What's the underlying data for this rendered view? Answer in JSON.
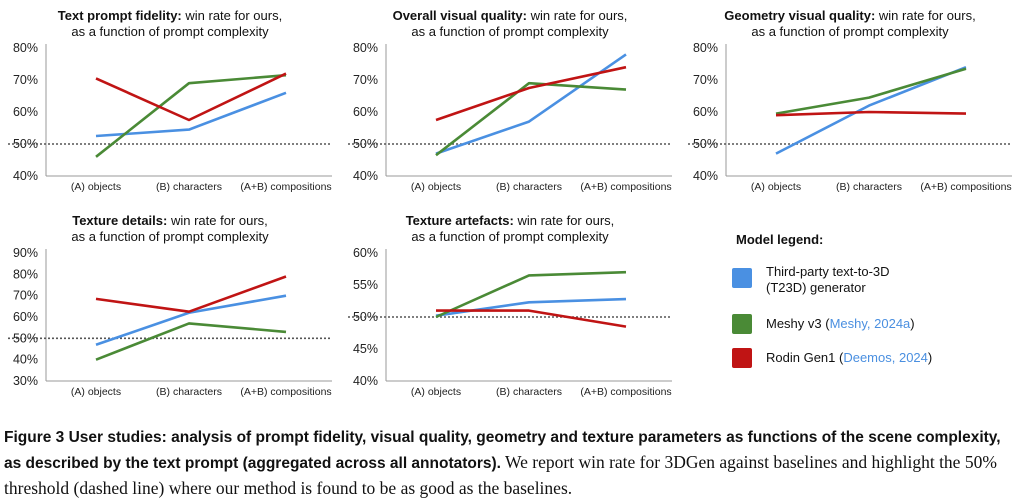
{
  "colors": {
    "t23d": "#4a90e2",
    "meshy": "#4a8a36",
    "rodin": "#c01414",
    "threshold": "#555555",
    "axis": "#999999"
  },
  "chart_data": [
    {
      "type": "line",
      "title_bold": "Text prompt fidelity:",
      "title_rest": " win rate for ours,",
      "title_line2": "as a function of prompt complexity",
      "categories": [
        "(A) objects",
        "(B) characters",
        "(A+B) compositions"
      ],
      "ylim": [
        40,
        80
      ],
      "yticks": [
        40,
        50,
        60,
        70,
        80
      ],
      "ytick_labels": [
        "40%",
        "50%",
        "60%",
        "70%",
        "80%"
      ],
      "threshold": 50,
      "series": [
        {
          "key": "t23d",
          "values": [
            52.5,
            54.5,
            66
          ]
        },
        {
          "key": "meshy",
          "values": [
            46,
            69,
            71.5
          ]
        },
        {
          "key": "rodin",
          "values": [
            70.5,
            57.5,
            72
          ]
        }
      ]
    },
    {
      "type": "line",
      "title_bold": "Overall visual quality:",
      "title_rest": " win rate for ours,",
      "title_line2": "as a function of prompt complexity",
      "categories": [
        "(A) objects",
        "(B) characters",
        "(A+B) compositions"
      ],
      "ylim": [
        40,
        80
      ],
      "yticks": [
        40,
        50,
        60,
        70,
        80
      ],
      "ytick_labels": [
        "40%",
        "50%",
        "60%",
        "70%",
        "80%"
      ],
      "threshold": 50,
      "series": [
        {
          "key": "t23d",
          "values": [
            47,
            57,
            78
          ]
        },
        {
          "key": "meshy",
          "values": [
            46.5,
            69,
            67
          ]
        },
        {
          "key": "rodin",
          "values": [
            57.5,
            67.5,
            74
          ]
        }
      ]
    },
    {
      "type": "line",
      "title_bold": "Geometry visual quality:",
      "title_rest": " win rate for ours,",
      "title_line2": "as a function of prompt complexity",
      "categories": [
        "(A) objects",
        "(B) characters",
        "(A+B) compositions"
      ],
      "ylim": [
        40,
        80
      ],
      "yticks": [
        40,
        50,
        60,
        70,
        80
      ],
      "ytick_labels": [
        "40%",
        "50%",
        "60%",
        "70%",
        "80%"
      ],
      "threshold": 50,
      "series": [
        {
          "key": "t23d",
          "values": [
            47,
            62,
            74
          ]
        },
        {
          "key": "meshy",
          "values": [
            59.5,
            64.5,
            73.5
          ]
        },
        {
          "key": "rodin",
          "values": [
            59,
            60,
            59.5
          ]
        }
      ]
    },
    {
      "type": "line",
      "title_bold": "Texture details:",
      "title_rest": " win rate for ours,",
      "title_line2": "as a function of prompt complexity",
      "categories": [
        "(A) objects",
        "(B) characters",
        "(A+B) compositions"
      ],
      "ylim": [
        30,
        90
      ],
      "yticks": [
        30,
        40,
        50,
        60,
        70,
        80,
        90
      ],
      "ytick_labels": [
        "30%",
        "40%",
        "50%",
        "60%",
        "70%",
        "80%",
        "90%"
      ],
      "threshold": 50,
      "series": [
        {
          "key": "t23d",
          "values": [
            47,
            62,
            70
          ]
        },
        {
          "key": "meshy",
          "values": [
            40,
            57,
            53
          ]
        },
        {
          "key": "rodin",
          "values": [
            68.5,
            62.5,
            79
          ]
        }
      ]
    },
    {
      "type": "line",
      "title_bold": "Texture artefacts:",
      "title_rest": " win rate for ours,",
      "title_line2": "as a function of prompt complexity",
      "categories": [
        "(A) objects",
        "(B) characters",
        "(A+B) compositions"
      ],
      "ylim": [
        40,
        60
      ],
      "yticks": [
        40,
        45,
        50,
        55,
        60
      ],
      "ytick_labels": [
        "40%",
        "45%",
        "50%",
        "55%",
        "60%"
      ],
      "threshold": 50,
      "series": [
        {
          "key": "t23d",
          "values": [
            50.2,
            52.3,
            52.8
          ]
        },
        {
          "key": "meshy",
          "values": [
            50.0,
            56.5,
            57.0
          ]
        },
        {
          "key": "rodin",
          "values": [
            51.0,
            51.0,
            48.5
          ]
        }
      ]
    }
  ],
  "legend": {
    "title": "Model legend:",
    "items": [
      {
        "key": "t23d",
        "line1": "Third-party text-to-3D",
        "line2": "(T23D) generator",
        "cite": ""
      },
      {
        "key": "meshy",
        "line1": "Meshy v3 (",
        "line2": "",
        "cite": "Meshy, 2024a",
        "tail": ")"
      },
      {
        "key": "rodin",
        "line1": "Rodin Gen1 (",
        "line2": "",
        "cite": "Deemos, 2024",
        "tail": ")"
      }
    ]
  },
  "caption": {
    "bold": "Figure 3  User studies: analysis of prompt fidelity, visual quality, geometry and texture parameters as functions of the scene complexity, as described by the text prompt (aggregated across all annotators).",
    "rest": " We report win rate for 3DGen against baselines and highlight the 50% threshold (dashed line) where our method is found to be as good as the baselines."
  }
}
